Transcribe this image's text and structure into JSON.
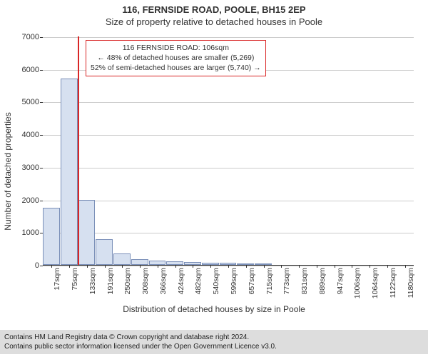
{
  "chart": {
    "type": "bar-histogram",
    "title_main": "116, FERNSIDE ROAD, POOLE, BH15 2EP",
    "title_sub": "Size of property relative to detached houses in Poole",
    "title_fontsize": 13,
    "ylabel": "Number of detached properties",
    "xlabel": "Distribution of detached houses by size in Poole",
    "label_fontsize": 12,
    "background_color": "#ffffff",
    "grid_color": "#cccccc",
    "bar_fill": "#d6e0f0",
    "bar_border": "#7a8fb8",
    "marker_color": "#d92626",
    "ylim": [
      0,
      7000
    ],
    "ytick_step": 1000,
    "yticks": [
      0,
      1000,
      2000,
      3000,
      4000,
      5000,
      6000,
      7000
    ],
    "x_categories": [
      "17sqm",
      "75sqm",
      "133sqm",
      "191sqm",
      "250sqm",
      "308sqm",
      "366sqm",
      "424sqm",
      "482sqm",
      "540sqm",
      "599sqm",
      "657sqm",
      "715sqm",
      "773sqm",
      "831sqm",
      "889sqm",
      "947sqm",
      "1006sqm",
      "1064sqm",
      "1122sqm",
      "1180sqm"
    ],
    "values": [
      1750,
      5700,
      2000,
      780,
      340,
      180,
      125,
      100,
      85,
      70,
      60,
      50,
      40,
      0,
      0,
      0,
      0,
      0,
      0,
      0,
      0
    ],
    "marker_position_sqm": 106,
    "annotation": {
      "line1": "116 FERNSIDE ROAD: 106sqm",
      "line2": "← 48% of detached houses are smaller (5,269)",
      "line3": "52% of semi-detached houses are larger (5,740) →",
      "border_color": "#d92626",
      "bg_color": "#ffffff",
      "fontsize": 10.5
    }
  },
  "footer": {
    "line1": "Contains HM Land Registry data © Crown copyright and database right 2024.",
    "line2": "Contains public sector information licensed under the Open Government Licence v3.0.",
    "bg_color": "#dddddd",
    "fontsize": 10
  }
}
